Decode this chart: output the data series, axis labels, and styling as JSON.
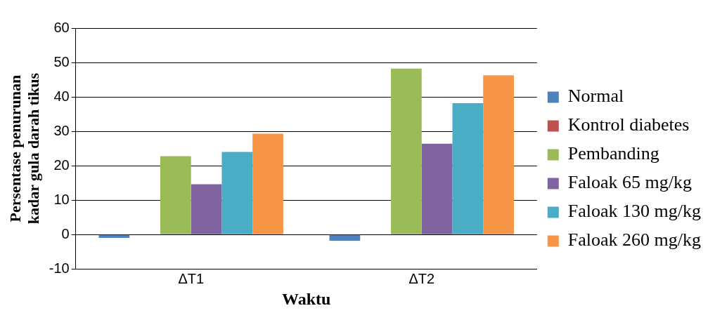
{
  "chart_data": {
    "type": "bar",
    "xlabel": "Waktu",
    "ylabel": "Persentase penurunan\nkadar gula darah tikus",
    "categories": [
      "ΔT1",
      "ΔT2"
    ],
    "series": [
      {
        "name": "Normal",
        "color": "#4f81bd",
        "values": [
          -1,
          -1.8
        ]
      },
      {
        "name": "Kontrol diabetes",
        "color": "#c0504d",
        "values": [
          0,
          0
        ]
      },
      {
        "name": "Pembanding",
        "color": "#9bbb59",
        "values": [
          22.8,
          48.2
        ]
      },
      {
        "name": "Faloak 65 mg/kg",
        "color": "#8064a2",
        "values": [
          14.6,
          26.4
        ]
      },
      {
        "name": "Faloak 130 mg/kg",
        "color": "#4bacc6",
        "values": [
          24,
          38.2
        ]
      },
      {
        "name": "Faloak 260 mg/kg",
        "color": "#f79646",
        "values": [
          29.3,
          46.3
        ]
      }
    ],
    "ylim": [
      -10,
      60
    ],
    "yticks": [
      -10,
      0,
      10,
      20,
      30,
      40,
      50,
      60
    ],
    "grid": "y",
    "legend": "right"
  }
}
